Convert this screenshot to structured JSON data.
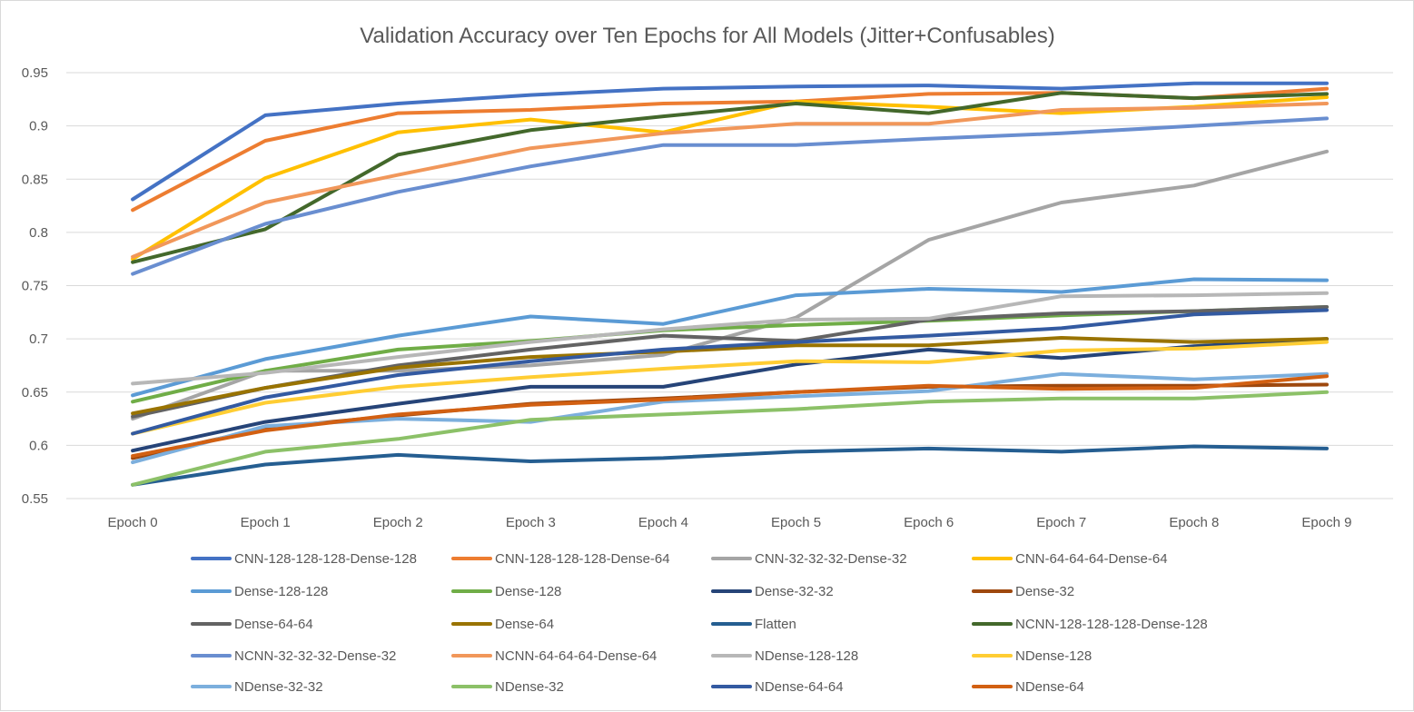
{
  "chart_data": {
    "type": "line",
    "title": "Validation Accuracy over Ten Epochs for All Models (Jitter+Confusables)",
    "xlabel": "",
    "ylabel": "",
    "categories": [
      "Epoch 0",
      "Epoch 1",
      "Epoch 2",
      "Epoch 3",
      "Epoch 4",
      "Epoch 5",
      "Epoch 6",
      "Epoch 7",
      "Epoch 8",
      "Epoch 9"
    ],
    "ylim": [
      0.55,
      0.95
    ],
    "yticks": [
      0.55,
      0.6,
      0.65,
      0.7,
      0.75,
      0.8,
      0.85,
      0.9,
      0.95
    ],
    "ytick_labels": [
      "0.55",
      "0.6",
      "0.65",
      "0.7",
      "0.75",
      "0.8",
      "0.85",
      "0.9",
      "0.95"
    ],
    "grid": true,
    "legend_position": "bottom",
    "series": [
      {
        "name": "CNN-128-128-128-Dense-128",
        "color": "#4472C4",
        "values": [
          0.831,
          0.91,
          0.921,
          0.929,
          0.935,
          0.937,
          0.938,
          0.935,
          0.94,
          0.94
        ]
      },
      {
        "name": "CNN-128-128-128-Dense-64",
        "color": "#ED7D31",
        "values": [
          0.821,
          0.886,
          0.912,
          0.915,
          0.921,
          0.923,
          0.93,
          0.931,
          0.926,
          0.935
        ]
      },
      {
        "name": "CNN-32-32-32-Dense-32",
        "color": "#A5A5A5",
        "values": [
          0.625,
          0.67,
          0.67,
          0.675,
          0.685,
          0.72,
          0.793,
          0.828,
          0.844,
          0.876
        ]
      },
      {
        "name": "CNN-64-64-64-Dense-64",
        "color": "#FFC000",
        "values": [
          0.775,
          0.851,
          0.894,
          0.906,
          0.894,
          0.923,
          0.918,
          0.912,
          0.918,
          0.927
        ]
      },
      {
        "name": "Dense-128-128",
        "color": "#5B9BD5",
        "values": [
          0.647,
          0.681,
          0.703,
          0.721,
          0.714,
          0.741,
          0.747,
          0.744,
          0.756,
          0.755
        ]
      },
      {
        "name": "Dense-128",
        "color": "#70AD47",
        "values": [
          0.641,
          0.67,
          0.69,
          0.698,
          0.708,
          0.713,
          0.717,
          0.722,
          0.726,
          0.73
        ]
      },
      {
        "name": "Dense-32-32",
        "color": "#264478",
        "values": [
          0.595,
          0.622,
          0.639,
          0.655,
          0.655,
          0.676,
          0.69,
          0.682,
          0.693,
          0.7
        ]
      },
      {
        "name": "Dense-32",
        "color": "#9E480E",
        "values": [
          0.588,
          0.616,
          0.628,
          0.639,
          0.644,
          0.65,
          0.655,
          0.656,
          0.656,
          0.657
        ]
      },
      {
        "name": "Dense-64-64",
        "color": "#636363",
        "values": [
          0.627,
          0.654,
          0.675,
          0.69,
          0.703,
          0.698,
          0.718,
          0.724,
          0.726,
          0.73
        ]
      },
      {
        "name": "Dense-64",
        "color": "#997300",
        "values": [
          0.63,
          0.654,
          0.673,
          0.683,
          0.688,
          0.694,
          0.694,
          0.701,
          0.697,
          0.7
        ]
      },
      {
        "name": "Flatten",
        "color": "#255E91",
        "values": [
          0.563,
          0.582,
          0.591,
          0.585,
          0.588,
          0.594,
          0.597,
          0.594,
          0.599,
          0.597
        ]
      },
      {
        "name": "NCNN-128-128-128-Dense-128",
        "color": "#43682B",
        "values": [
          0.772,
          0.803,
          0.873,
          0.896,
          0.909,
          0.921,
          0.912,
          0.931,
          0.926,
          0.93
        ]
      },
      {
        "name": "NCNN-32-32-32-Dense-32",
        "color": "#698ED0",
        "values": [
          0.761,
          0.808,
          0.838,
          0.862,
          0.882,
          0.882,
          0.888,
          0.893,
          0.9,
          0.907
        ]
      },
      {
        "name": "NCNN-64-64-64-Dense-64",
        "color": "#F1975A",
        "values": [
          0.777,
          0.828,
          0.854,
          0.879,
          0.893,
          0.902,
          0.902,
          0.915,
          0.917,
          0.921
        ]
      },
      {
        "name": "NDense-128-128",
        "color": "#B7B7B7",
        "values": [
          0.658,
          0.668,
          0.683,
          0.697,
          0.709,
          0.718,
          0.719,
          0.74,
          0.741,
          0.743
        ]
      },
      {
        "name": "NDense-128",
        "color": "#FFCD33",
        "values": [
          0.611,
          0.64,
          0.655,
          0.664,
          0.672,
          0.679,
          0.678,
          0.689,
          0.691,
          0.697
        ]
      },
      {
        "name": "NDense-32-32",
        "color": "#7CAFDD",
        "values": [
          0.584,
          0.618,
          0.625,
          0.622,
          0.641,
          0.646,
          0.651,
          0.667,
          0.662,
          0.667
        ]
      },
      {
        "name": "NDense-32",
        "color": "#8CC168",
        "values": [
          0.563,
          0.594,
          0.606,
          0.624,
          0.629,
          0.634,
          0.641,
          0.644,
          0.644,
          0.65
        ]
      },
      {
        "name": "NDense-64-64",
        "color": "#335AA1",
        "values": [
          0.611,
          0.645,
          0.666,
          0.679,
          0.69,
          0.697,
          0.703,
          0.71,
          0.723,
          0.727
        ]
      },
      {
        "name": "NDense-64",
        "color": "#D26012",
        "values": [
          0.59,
          0.614,
          0.629,
          0.638,
          0.643,
          0.65,
          0.656,
          0.653,
          0.654,
          0.665
        ]
      }
    ]
  }
}
